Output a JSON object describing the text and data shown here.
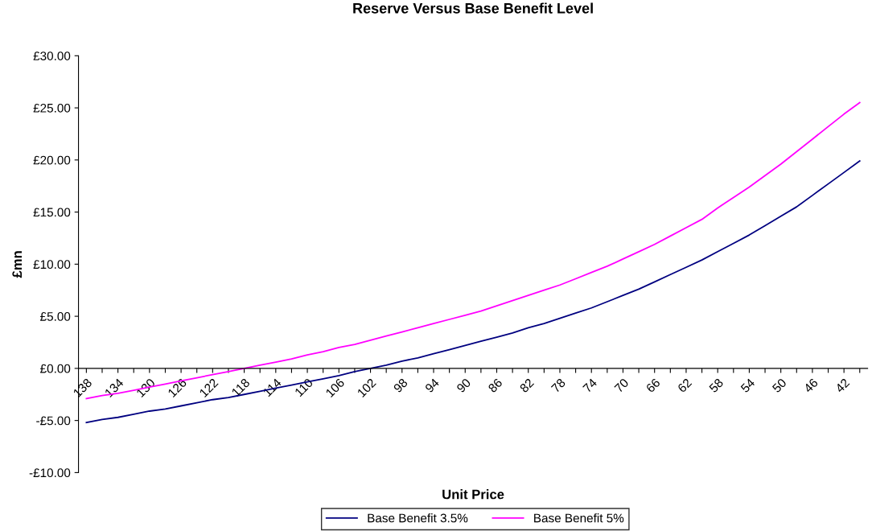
{
  "chart_data": {
    "type": "line",
    "title": "Reserve Versus Base Benefit Level",
    "xlabel": "Unit Price",
    "ylabel": "£mn",
    "categories": [
      "138",
      null,
      "134",
      null,
      "130",
      null,
      "126",
      null,
      "122",
      null,
      "118",
      null,
      "114",
      null,
      "110",
      null,
      "106",
      null,
      "102",
      null,
      "98",
      null,
      "94",
      null,
      "90",
      null,
      "86",
      null,
      "82",
      null,
      "78",
      null,
      "74",
      null,
      "70",
      null,
      "66",
      null,
      "62",
      null,
      "58",
      null,
      "54",
      null,
      "50",
      null,
      "46",
      null,
      "42",
      null
    ],
    "series": [
      {
        "name": "Base Benefit 3.5%",
        "color": "#000080",
        "values": [
          -5.2,
          -4.9,
          -4.7,
          -4.4,
          -4.1,
          -3.9,
          -3.6,
          -3.3,
          -3.0,
          -2.8,
          -2.5,
          -2.2,
          -1.9,
          -1.6,
          -1.3,
          -1.0,
          -0.7,
          -0.3,
          0.0,
          0.3,
          0.7,
          1.0,
          1.4,
          1.8,
          2.2,
          2.6,
          3.0,
          3.4,
          3.9,
          4.3,
          4.8,
          5.3,
          5.8,
          6.4,
          7.0,
          7.6,
          8.3,
          9.0,
          9.7,
          10.4,
          11.2,
          12.0,
          12.8,
          13.7,
          14.6,
          15.5,
          16.6,
          17.7,
          18.8,
          19.9
        ]
      },
      {
        "name": "Base Benefit 5%",
        "color": "#ff00ff",
        "values": [
          -2.9,
          -2.6,
          -2.4,
          -2.1,
          -1.8,
          -1.5,
          -1.2,
          -0.9,
          -0.6,
          -0.3,
          0.0,
          0.3,
          0.6,
          0.9,
          1.3,
          1.6,
          2.0,
          2.3,
          2.7,
          3.1,
          3.5,
          3.9,
          4.3,
          4.7,
          5.1,
          5.5,
          6.0,
          6.5,
          7.0,
          7.5,
          8.0,
          8.6,
          9.2,
          9.8,
          10.5,
          11.2,
          11.9,
          12.7,
          13.5,
          14.3,
          15.4,
          16.4,
          17.4,
          18.5,
          19.6,
          20.8,
          22.0,
          23.2,
          24.4,
          25.5
        ]
      }
    ],
    "ylim": [
      -10,
      30
    ],
    "yticks": [
      {
        "value": -10,
        "label": "-£10.00"
      },
      {
        "value": -5,
        "label": "-£5.00"
      },
      {
        "value": 0,
        "label": "£0.00"
      },
      {
        "value": 5,
        "label": "£5.00"
      },
      {
        "value": 10,
        "label": "£10.00"
      },
      {
        "value": 15,
        "label": "£15.00"
      },
      {
        "value": 20,
        "label": "£20.00"
      },
      {
        "value": 25,
        "label": "£25.00"
      },
      {
        "value": 30,
        "label": "£30.00"
      }
    ],
    "grid": false,
    "legend": "bottom",
    "marker": "none",
    "line_style": "solid"
  }
}
